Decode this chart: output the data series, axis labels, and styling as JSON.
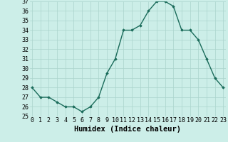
{
  "hours": [
    0,
    1,
    2,
    3,
    4,
    5,
    6,
    7,
    8,
    9,
    10,
    11,
    12,
    13,
    14,
    15,
    16,
    17,
    18,
    19,
    20,
    21,
    22,
    23
  ],
  "values": [
    28,
    27,
    27,
    26.5,
    26,
    26,
    25.5,
    26,
    27,
    29.5,
    31,
    34,
    34,
    34.5,
    36,
    37,
    37,
    36.5,
    34,
    34,
    33,
    31,
    29,
    28
  ],
  "xlabel": "Humidex (Indice chaleur)",
  "ylim": [
    25,
    37
  ],
  "xlim": [
    -0.3,
    23.3
  ],
  "yticks": [
    25,
    26,
    27,
    28,
    29,
    30,
    31,
    32,
    33,
    34,
    35,
    36,
    37
  ],
  "xticks": [
    0,
    1,
    2,
    3,
    4,
    5,
    6,
    7,
    8,
    9,
    10,
    11,
    12,
    13,
    14,
    15,
    16,
    17,
    18,
    19,
    20,
    21,
    22,
    23
  ],
  "line_color": "#1a6b5a",
  "marker": "D",
  "marker_size": 1.8,
  "bg_color": "#cceee8",
  "grid_color": "#aad4cc",
  "xlabel_fontsize": 7.5,
  "tick_fontsize": 6.0,
  "linewidth": 1.0
}
